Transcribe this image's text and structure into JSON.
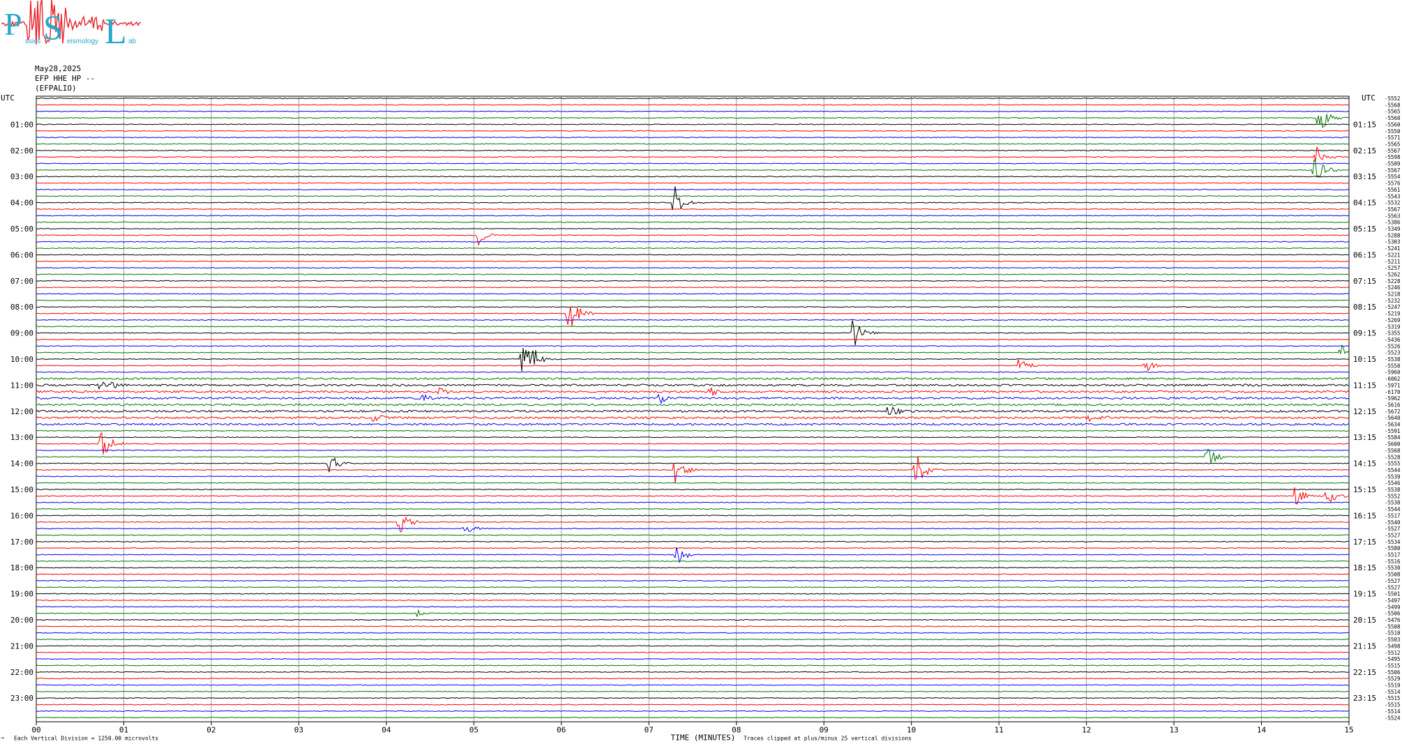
{
  "logo": {
    "letters": [
      "P",
      "S",
      "L"
    ],
    "subwords": [
      "ssics",
      "eismology",
      "ab"
    ],
    "color": "#27a8c8",
    "trace_color": "#e8232a"
  },
  "header": {
    "date": "May28,2025",
    "station": "EFP HHE HP --",
    "site": "(EFPALIO)"
  },
  "chart_data": {
    "type": "line",
    "title": "",
    "left_axis_title": "UTC",
    "right_axis_title": "UTC",
    "left_hour_labels": [
      "01:00",
      "02:00",
      "03:00",
      "04:00",
      "05:00",
      "06:00",
      "07:00",
      "08:00",
      "09:00",
      "10:00",
      "11:00",
      "12:00",
      "13:00",
      "14:00",
      "15:00",
      "16:00",
      "17:00",
      "18:00",
      "19:00",
      "20:00",
      "21:00",
      "22:00",
      "23:00"
    ],
    "right_hour_labels": [
      "01:15",
      "02:15",
      "03:15",
      "04:15",
      "05:15",
      "06:15",
      "07:15",
      "08:15",
      "09:15",
      "10:15",
      "11:15",
      "12:15",
      "13:15",
      "14:15",
      "15:15",
      "16:15",
      "17:15",
      "18:15",
      "19:15",
      "20:15",
      "21:15",
      "22:15",
      "23:15"
    ],
    "x_ticks": [
      "00",
      "01",
      "02",
      "03",
      "04",
      "05",
      "06",
      "07",
      "08",
      "09",
      "10",
      "11",
      "12",
      "13",
      "14",
      "15"
    ],
    "xlim": [
      0,
      15
    ],
    "xlabel": "TIME (MINUTES)",
    "trace_minutes": 15,
    "trace_count": 96,
    "color_cycle": [
      "#000000",
      "#ff0000",
      "#0000ff",
      "#007700"
    ],
    "grid": true,
    "trace_offsets": [
      "-5552",
      "-5568",
      "-5565",
      "-5560",
      "-5560",
      "-5550",
      "-5571",
      "-5565",
      "-5567",
      "-5598",
      "-5589",
      "-5567",
      "-5554",
      "-5576",
      "-5561",
      "-5543",
      "-5532",
      "-5567",
      "-5563",
      "-5386",
      "-5349",
      "-5288",
      "-5303",
      "-5241",
      "-5221",
      "-5211",
      "-5257",
      "-5262",
      "-5228",
      "-5246",
      "-5218",
      "-5232",
      "-5247",
      "-5219",
      "-5269",
      "-5319",
      "-5355",
      "-5436",
      "-5526",
      "-5523",
      "-5538",
      "-5550",
      "-5960",
      "-6062",
      "-5971",
      "-6170",
      "-5962",
      "-5616",
      "-5672",
      "-5640",
      "-5634",
      "-5591",
      "-5584",
      "-5600",
      "-5568",
      "-5528",
      "-5555",
      "-5544",
      "-5539",
      "-5546",
      "-5538",
      "-5552",
      "-5538",
      "-5544",
      "-5517",
      "-5540",
      "-5527",
      "-5527",
      "-5534",
      "-5580",
      "-5517",
      "-5516",
      "-5530",
      "-5508",
      "-5527",
      "-5527",
      "-5501",
      "-5497",
      "-5499",
      "-5506",
      "-5476",
      "-5508",
      "-5510",
      "-5503",
      "-5498",
      "-5512",
      "-5495",
      "-5515",
      "-5506",
      "-5529",
      "-5519",
      "-5514",
      "-5515",
      "-5515",
      "-5514",
      "-5524"
    ],
    "events": [
      {
        "trace": 3,
        "minute": 14.65,
        "amplitude": 2.8
      },
      {
        "trace": 9,
        "minute": 14.6,
        "amplitude": 2.2
      },
      {
        "trace": 11,
        "minute": 14.6,
        "amplitude": 2.8
      },
      {
        "trace": 16,
        "minute": 7.28,
        "amplitude": 3.5
      },
      {
        "trace": 21,
        "minute": 5.05,
        "amplitude": 1.5
      },
      {
        "trace": 33,
        "minute": 6.08,
        "amplitude": 3.3
      },
      {
        "trace": 36,
        "minute": 9.32,
        "amplitude": 3.5
      },
      {
        "trace": 40,
        "minute": 5.55,
        "amplitude": 3.2
      },
      {
        "trace": 40,
        "minute": 5.62,
        "amplitude": 2.8
      },
      {
        "trace": 41,
        "minute": 11.22,
        "amplitude": 1.4
      },
      {
        "trace": 41,
        "minute": 12.68,
        "amplitude": 1.3
      },
      {
        "trace": 39,
        "minute": 14.9,
        "amplitude": 1.6
      },
      {
        "trace": 44,
        "minute": 0.72,
        "amplitude": 0.8
      },
      {
        "trace": 44,
        "minute": 0.85,
        "amplitude": 0.6
      },
      {
        "trace": 45,
        "minute": 4.6,
        "amplitude": 0.8
      },
      {
        "trace": 45,
        "minute": 7.7,
        "amplitude": 0.8
      },
      {
        "trace": 46,
        "minute": 4.4,
        "amplitude": 0.6
      },
      {
        "trace": 46,
        "minute": 7.12,
        "amplitude": 1.0
      },
      {
        "trace": 48,
        "minute": 9.72,
        "amplitude": 1.5
      },
      {
        "trace": 49,
        "minute": 3.85,
        "amplitude": 0.7
      },
      {
        "trace": 49,
        "minute": 12.02,
        "amplitude": 1.0
      },
      {
        "trace": 53,
        "minute": 0.72,
        "amplitude": 3.2
      },
      {
        "trace": 55,
        "minute": 13.38,
        "amplitude": 2.2
      },
      {
        "trace": 56,
        "minute": 3.35,
        "amplitude": 1.5
      },
      {
        "trace": 57,
        "minute": 7.3,
        "amplitude": 2.2
      },
      {
        "trace": 57,
        "minute": 10.05,
        "amplitude": 3.5
      },
      {
        "trace": 61,
        "minute": 14.38,
        "amplitude": 1.8
      },
      {
        "trace": 61,
        "minute": 14.75,
        "amplitude": 2.0
      },
      {
        "trace": 65,
        "minute": 4.15,
        "amplitude": 2.2
      },
      {
        "trace": 66,
        "minute": 4.9,
        "amplitude": 1.2
      },
      {
        "trace": 70,
        "minute": 7.3,
        "amplitude": 2.0
      },
      {
        "trace": 79,
        "minute": 4.35,
        "amplitude": 0.5
      }
    ]
  },
  "footer": {
    "left_mark": "→",
    "scale_note": "Each Vertical Division = 1250.00 microvolts",
    "clip_note": "Traces clipped at plus/minus 25 vertical divisions"
  }
}
